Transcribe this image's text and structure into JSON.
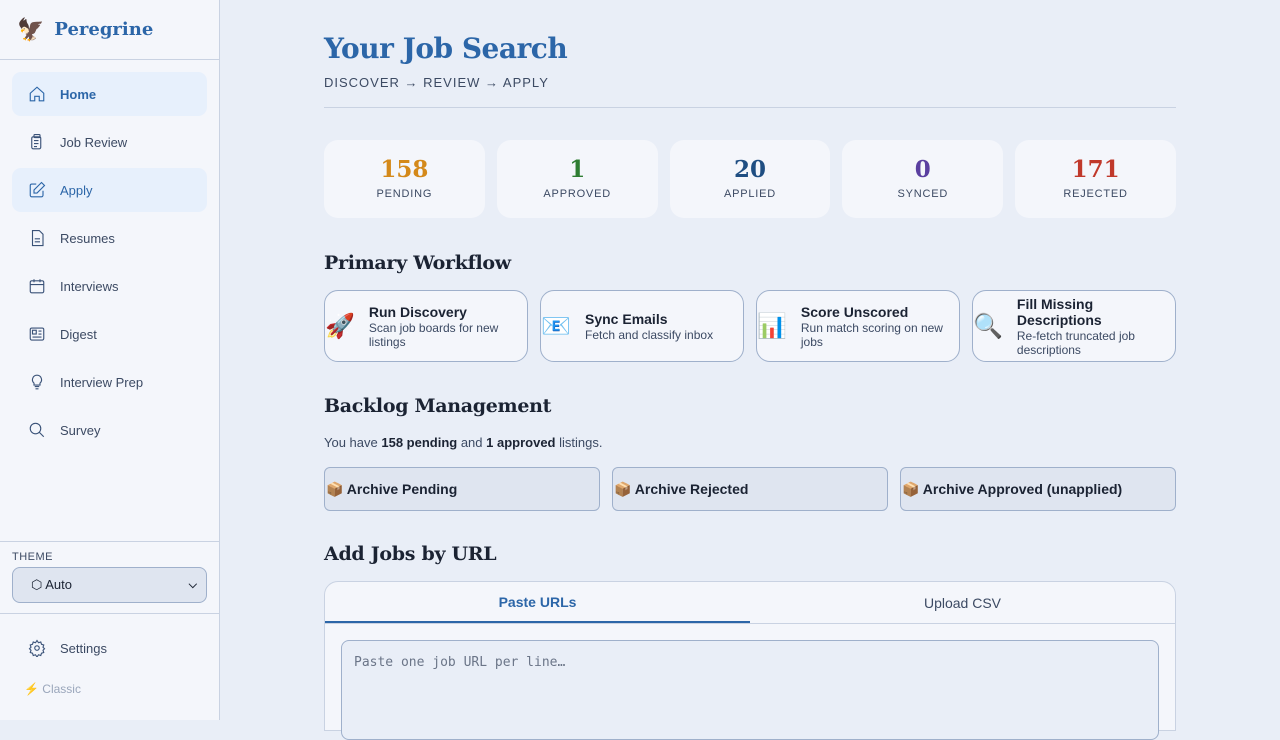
{
  "app": {
    "name": "Peregrine",
    "logo": "🦅"
  },
  "sidebar": {
    "items": [
      {
        "label": "Home",
        "icon": "home-icon"
      },
      {
        "label": "Job Review",
        "icon": "clipboard-icon"
      },
      {
        "label": "Apply",
        "icon": "pencil-icon"
      },
      {
        "label": "Resumes",
        "icon": "document-icon"
      },
      {
        "label": "Interviews",
        "icon": "calendar-icon"
      },
      {
        "label": "Digest",
        "icon": "newspaper-icon"
      },
      {
        "label": "Interview Prep",
        "icon": "lightbulb-icon"
      },
      {
        "label": "Survey",
        "icon": "search-icon"
      }
    ],
    "theme_label": "THEME",
    "theme_value": "⬡ Auto",
    "settings": "Settings",
    "classic": "⚡ Classic"
  },
  "header": {
    "title": "Your Job Search",
    "subtitle": "DISCOVER → REVIEW → APPLY"
  },
  "stats": [
    {
      "value": "158",
      "label": "PENDING",
      "color": "#d4891a"
    },
    {
      "value": "1",
      "label": "APPROVED",
      "color": "#2e7d32"
    },
    {
      "value": "20",
      "label": "APPLIED",
      "color": "#1f4e82"
    },
    {
      "value": "0",
      "label": "SYNCED",
      "color": "#5a3fa0"
    },
    {
      "value": "171",
      "label": "REJECTED",
      "color": "#c0392b"
    }
  ],
  "workflow": {
    "title": "Primary Workflow",
    "cards": [
      {
        "icon": "🚀",
        "title": "Run Discovery",
        "desc": "Scan job boards for new listings"
      },
      {
        "icon": "📧",
        "title": "Sync Emails",
        "desc": "Fetch and classify inbox"
      },
      {
        "icon": "📊",
        "title": "Score Unscored",
        "desc": "Run match scoring on new jobs"
      },
      {
        "icon": "🔍",
        "title": "Fill Missing Descriptions",
        "desc": "Re-fetch truncated job descriptions"
      }
    ]
  },
  "backlog": {
    "title": "Backlog Management",
    "pre": "You have ",
    "pending": "158 pending",
    "mid": " and ",
    "approved": "1 approved",
    "post": " listings.",
    "buttons": [
      "📦 Archive Pending",
      "📦 Archive Rejected",
      "📦 Archive Approved (unapplied)"
    ]
  },
  "add_jobs": {
    "title": "Add Jobs by URL",
    "tabs": [
      "Paste URLs",
      "Upload CSV"
    ],
    "placeholder": "Paste one job URL per line…"
  }
}
